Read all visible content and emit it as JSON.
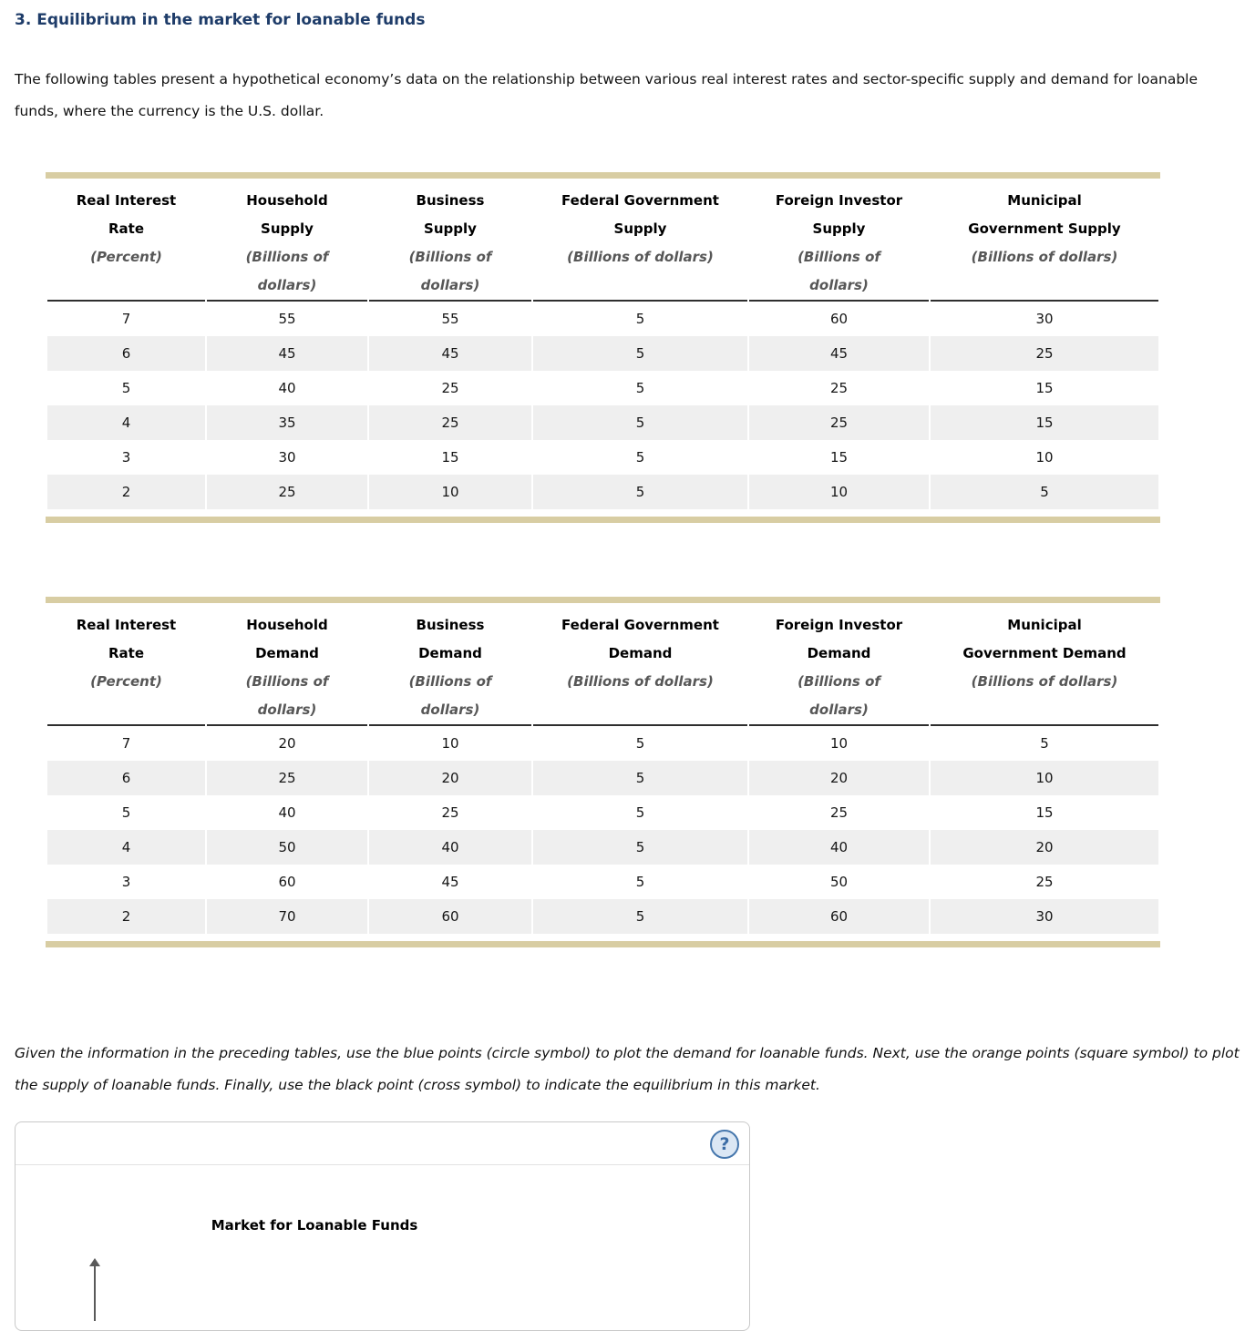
{
  "page": {
    "heading": "3. Equilibrium in the market for loanable funds",
    "intro": "The following tables present a hypothetical economy’s data on the relationship between various real interest rates and sector-specific supply and demand for loanable funds, where the currency is the U.S. dollar.",
    "instructions": "Given the information in the preceding tables, use the blue points (circle symbol) to plot the demand for loanable funds. Next, use the orange points (square symbol) to plot the supply of loanable funds. Finally, use the black point (cross symbol) to indicate the equilibrium in this market."
  },
  "supply_table": {
    "columns": [
      {
        "line1": "Real Interest",
        "line2": "Rate",
        "unit1": "(Percent)",
        "unit2": ""
      },
      {
        "line1": "Household",
        "line2": "Supply",
        "unit1": "(Billions of",
        "unit2": "dollars)"
      },
      {
        "line1": "Business",
        "line2": "Supply",
        "unit1": "(Billions of",
        "unit2": "dollars)"
      },
      {
        "line1": "Federal Government",
        "line2": "Supply",
        "unit1": "(Billions of dollars)",
        "unit2": ""
      },
      {
        "line1": "Foreign Investor",
        "line2": "Supply",
        "unit1": "(Billions of",
        "unit2": "dollars)"
      },
      {
        "line1": "Municipal",
        "line2": "Government Supply",
        "unit1": "(Billions of dollars)",
        "unit2": ""
      }
    ],
    "rows": [
      [
        7,
        55,
        55,
        5,
        60,
        30
      ],
      [
        6,
        45,
        45,
        5,
        45,
        25
      ],
      [
        5,
        40,
        25,
        5,
        25,
        15
      ],
      [
        4,
        35,
        25,
        5,
        25,
        15
      ],
      [
        3,
        30,
        15,
        5,
        15,
        10
      ],
      [
        2,
        25,
        10,
        5,
        10,
        5
      ]
    ]
  },
  "demand_table": {
    "columns": [
      {
        "line1": "Real Interest",
        "line2": "Rate",
        "unit1": "(Percent)",
        "unit2": ""
      },
      {
        "line1": "Household",
        "line2": "Demand",
        "unit1": "(Billions of",
        "unit2": "dollars)"
      },
      {
        "line1": "Business",
        "line2": "Demand",
        "unit1": "(Billions of",
        "unit2": "dollars)"
      },
      {
        "line1": "Federal Government",
        "line2": "Demand",
        "unit1": "(Billions of dollars)",
        "unit2": ""
      },
      {
        "line1": "Foreign Investor",
        "line2": "Demand",
        "unit1": "(Billions of",
        "unit2": "dollars)"
      },
      {
        "line1": "Municipal",
        "line2": "Government Demand",
        "unit1": "(Billions of dollars)",
        "unit2": ""
      }
    ],
    "rows": [
      [
        7,
        20,
        10,
        5,
        10,
        5
      ],
      [
        6,
        25,
        20,
        5,
        20,
        10
      ],
      [
        5,
        40,
        25,
        5,
        25,
        15
      ],
      [
        4,
        50,
        40,
        5,
        40,
        20
      ],
      [
        3,
        60,
        45,
        5,
        50,
        25
      ],
      [
        2,
        70,
        60,
        5,
        60,
        30
      ]
    ]
  },
  "graph_panel": {
    "help_icon": "?",
    "chart_title": "Market for Loanable Funds"
  },
  "colors": {
    "heading_navy": "#1e3c69",
    "table_bar_tan": "#d8cda3",
    "row_alt_gray": "#efefef",
    "help_ring_blue": "#4677ad",
    "help_fill_blue": "#dbe7f4"
  }
}
